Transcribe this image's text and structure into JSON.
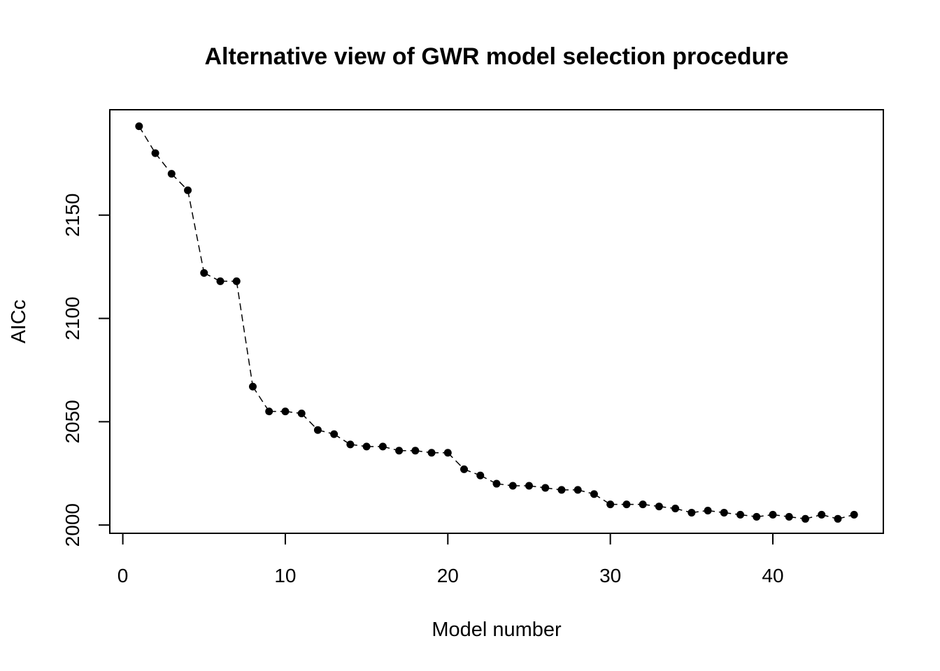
{
  "chart_data": {
    "type": "scatter",
    "title": "Alternative view of GWR model selection procedure",
    "xlabel": "Model number",
    "ylabel": "AICc",
    "xlim": [
      -0.8,
      46.8
    ],
    "ylim": [
      1996,
      2201
    ],
    "xticks": [
      0,
      10,
      20,
      30,
      40
    ],
    "yticks": [
      2000,
      2050,
      2100,
      2150
    ],
    "grid": false,
    "legend": "none",
    "point_color": "#000000",
    "connector_style": "dashed",
    "x": [
      1,
      2,
      3,
      4,
      5,
      6,
      7,
      8,
      9,
      10,
      11,
      12,
      13,
      14,
      15,
      16,
      17,
      18,
      19,
      20,
      21,
      22,
      23,
      24,
      25,
      26,
      27,
      28,
      29,
      30,
      31,
      32,
      33,
      34,
      35,
      36,
      37,
      38,
      39,
      40,
      41,
      42,
      43,
      44,
      45
    ],
    "y": [
      2193,
      2180,
      2170,
      2162,
      2122,
      2118,
      2118,
      2067,
      2055,
      2055,
      2054,
      2046,
      2044,
      2039,
      2038,
      2038,
      2036,
      2036,
      2035,
      2035,
      2027,
      2024,
      2020,
      2019,
      2019,
      2018,
      2017,
      2017,
      2015,
      2010,
      2010,
      2010,
      2009,
      2008,
      2006,
      2007,
      2006,
      2005,
      2004,
      2005,
      2004,
      2003,
      2005,
      2003,
      2005
    ]
  }
}
